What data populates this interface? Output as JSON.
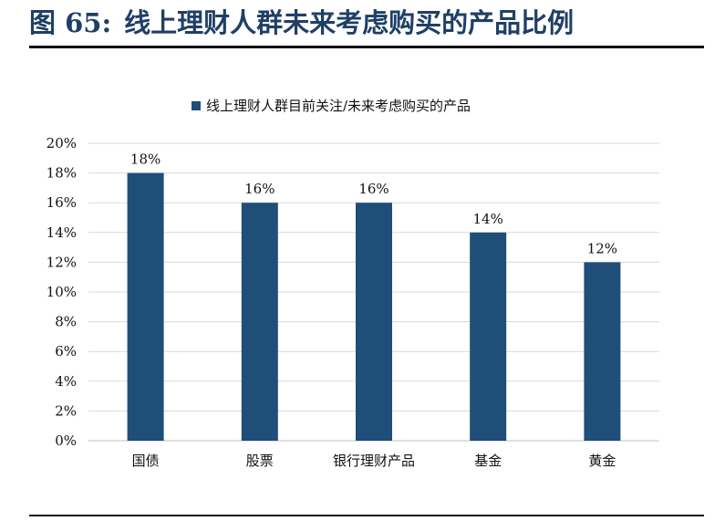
{
  "figure": {
    "label": "图 65:",
    "title": "线上理财人群未来考虑购买的产品比例"
  },
  "colors": {
    "bar": "#1f4e79",
    "title": "#1f3f66",
    "grid": "#d9d9d9"
  },
  "chart_data": {
    "type": "bar",
    "categories": [
      "国债",
      "股票",
      "银行理财产品",
      "基金",
      "黄金"
    ],
    "series": [
      {
        "name": "线上理财人群目前关注/未来考虑购买的产品",
        "values": [
          18,
          16,
          16,
          14,
          12
        ]
      }
    ],
    "value_labels": [
      "18%",
      "16%",
      "16%",
      "14%",
      "12%"
    ],
    "yticks": [
      "0%",
      "2%",
      "4%",
      "6%",
      "8%",
      "10%",
      "12%",
      "14%",
      "16%",
      "18%",
      "20%"
    ],
    "ylim": [
      0,
      20
    ],
    "legend": "top-center",
    "grid": true
  }
}
